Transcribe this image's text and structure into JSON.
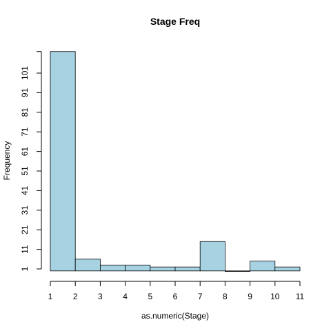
{
  "chart_data": {
    "type": "bar",
    "title": "Stage Freq",
    "xlabel": "as.numeric(Stage)",
    "ylabel": "Frequency",
    "bins": [
      {
        "from": 1,
        "to": 2,
        "value": 112
      },
      {
        "from": 2,
        "to": 3,
        "value": 6
      },
      {
        "from": 3,
        "to": 4,
        "value": 3
      },
      {
        "from": 4,
        "to": 5,
        "value": 3
      },
      {
        "from": 5,
        "to": 6,
        "value": 2
      },
      {
        "from": 6,
        "to": 7,
        "value": 2
      },
      {
        "from": 7,
        "to": 8,
        "value": 15
      },
      {
        "from": 8,
        "to": 9,
        "value": 0
      },
      {
        "from": 9,
        "to": 10,
        "value": 5
      },
      {
        "from": 10,
        "to": 11,
        "value": 2
      }
    ],
    "xlim": [
      1,
      11
    ],
    "ylim": [
      1,
      112
    ],
    "xticks": [
      "1",
      "2",
      "3",
      "4",
      "5",
      "6",
      "7",
      "8",
      "9",
      "10",
      "11"
    ],
    "yticks": [
      "1",
      "11",
      "21",
      "31",
      "41",
      "51",
      "61",
      "71",
      "81",
      "91",
      "101"
    ],
    "bar_color": "#a6d2e2",
    "bar_stroke": "#000000",
    "grid": false
  }
}
